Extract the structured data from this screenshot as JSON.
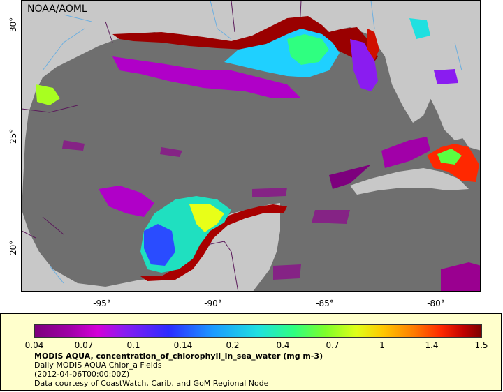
{
  "map": {
    "credit": "NOAA/AOML",
    "lat_ticks": [
      "30°",
      "25°",
      "20°"
    ],
    "lon_ticks": [
      "-95°",
      "-90°",
      "-85°",
      "-80°"
    ],
    "colors": {
      "water_no_data": "#6f6f6f",
      "land": "#c8c8c8",
      "rivers": "#6aaee0",
      "borders": "#5a1a5a"
    }
  },
  "legend": {
    "colorbar_labels": [
      "0.04",
      "0.07",
      "0.1",
      "0.14",
      "0.2",
      "0.4",
      "0.7",
      "1",
      "1.4",
      "1.5"
    ],
    "title": "MODIS AQUA, concentration_of_chlorophyll_in_sea_water (mg m-3)",
    "line2": "Daily MODIS AQUA Chlor_a Fields",
    "line3": "(2012-04-06T00:00:00Z)",
    "line4": "Data courtesy of CoastWatch, Carib. and GoM Regional Node"
  }
}
